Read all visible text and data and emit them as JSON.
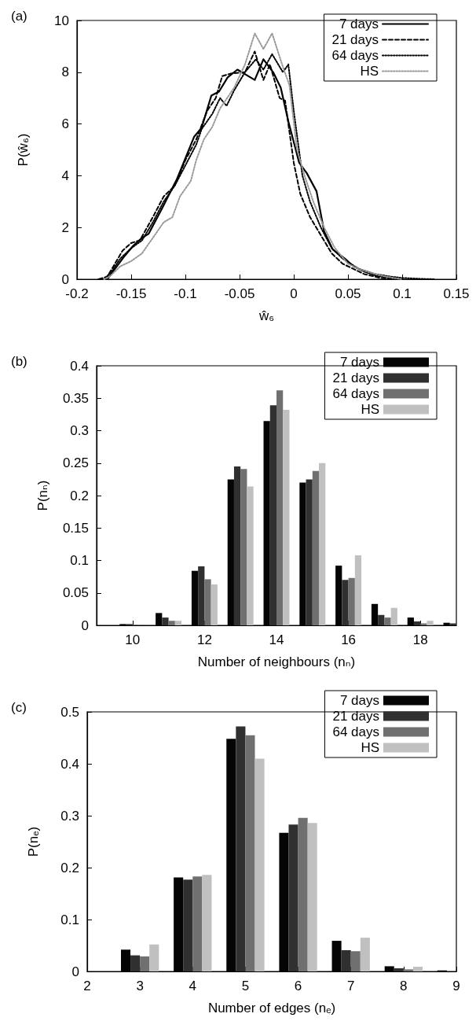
{
  "chart_data": [
    {
      "type": "line",
      "annotations": [
        "(a)"
      ],
      "xlabel": "ŵ₆",
      "ylabel": "P(ŵ₆)",
      "xlim": [
        -0.2,
        0.15
      ],
      "xticks": [
        -0.2,
        -0.15,
        -0.1,
        -0.05,
        0,
        0.05,
        0.1,
        0.15
      ],
      "ylim": [
        0,
        10
      ],
      "yticks": [
        0,
        2,
        4,
        6,
        8,
        10
      ],
      "grid": false,
      "legend": "top right",
      "marker": "none",
      "series": [
        {
          "name": "7 days",
          "color": "#000000",
          "line_style": "solid",
          "x": [
            -0.18,
            -0.172,
            -0.165,
            -0.157,
            -0.148,
            -0.14,
            -0.134,
            -0.122,
            -0.108,
            -0.092,
            -0.085,
            -0.076,
            -0.069,
            -0.061,
            -0.052,
            -0.036,
            -0.028,
            -0.019,
            -0.012,
            -0.005,
            0.005,
            0.012,
            0.021,
            0.028,
            0.036,
            0.047,
            0.055,
            0.065,
            0.075,
            0.09,
            0.1
          ],
          "values": [
            0,
            0,
            0.4,
            0.85,
            1.3,
            1.6,
            1.75,
            2.7,
            3.85,
            5.5,
            5.85,
            7.1,
            7.25,
            7.8,
            8.1,
            7.7,
            8.5,
            8.0,
            7.4,
            6.1,
            4.5,
            4.1,
            3.4,
            1.85,
            1.15,
            0.8,
            0.5,
            0.3,
            0.15,
            0.05,
            0
          ]
        },
        {
          "name": "21 days",
          "color": "#000000",
          "line_style": "dashed",
          "x": [
            -0.18,
            -0.172,
            -0.165,
            -0.158,
            -0.15,
            -0.142,
            -0.13,
            -0.12,
            -0.11,
            -0.1,
            -0.09,
            -0.08,
            -0.072,
            -0.066,
            -0.058,
            -0.045,
            -0.036,
            -0.028,
            -0.022,
            -0.013,
            -0.008,
            0,
            0.006,
            0.015,
            0.025,
            0.035,
            0.045,
            0.055,
            0.065,
            0.08,
            0.09
          ],
          "values": [
            0,
            0.1,
            0.6,
            1.1,
            1.4,
            1.5,
            2.4,
            3.2,
            3.6,
            4.6,
            5.4,
            6.5,
            7.0,
            7.85,
            7.95,
            8.0,
            8.8,
            7.7,
            8.3,
            7.0,
            6.9,
            4.5,
            3.3,
            2.4,
            1.7,
            1.0,
            0.6,
            0.4,
            0.2,
            0.05,
            0
          ]
        },
        {
          "name": "64 days",
          "color": "#000000",
          "line_style": "dotted",
          "x": [
            -0.175,
            -0.168,
            -0.16,
            -0.15,
            -0.14,
            -0.13,
            -0.12,
            -0.11,
            -0.1,
            -0.09,
            -0.085,
            -0.075,
            -0.068,
            -0.062,
            -0.055,
            -0.045,
            -0.035,
            -0.028,
            -0.02,
            -0.01,
            -0.005,
            0,
            0.008,
            0.015,
            0.025,
            0.035,
            0.045,
            0.06,
            0.075,
            0.09,
            0.1,
            0.115,
            0.13
          ],
          "values": [
            0,
            0.3,
            0.8,
            1.2,
            1.5,
            2.2,
            3.0,
            3.6,
            4.4,
            5.2,
            5.8,
            6.4,
            7.0,
            6.7,
            7.3,
            8.0,
            8.5,
            8.1,
            8.7,
            8.0,
            8.3,
            6.5,
            4.0,
            3.0,
            2.0,
            1.2,
            0.8,
            0.4,
            0.2,
            0.1,
            0.05,
            0.02,
            0
          ]
        },
        {
          "name": "HS",
          "color": "#999999",
          "line_style": "dotted",
          "x": [
            -0.175,
            -0.17,
            -0.16,
            -0.15,
            -0.14,
            -0.13,
            -0.12,
            -0.112,
            -0.105,
            -0.095,
            -0.09,
            -0.083,
            -0.075,
            -0.068,
            -0.055,
            -0.045,
            -0.036,
            -0.028,
            -0.02,
            -0.01,
            -0.004,
            0.003,
            0.01,
            0.018,
            0.028,
            0.038,
            0.05,
            0.06,
            0.075,
            0.085,
            0.1
          ],
          "values": [
            0,
            0.1,
            0.5,
            0.7,
            1.0,
            1.6,
            2.2,
            2.4,
            3.2,
            3.8,
            4.6,
            5.4,
            5.9,
            6.6,
            7.4,
            8.3,
            9.5,
            8.9,
            9.5,
            8.2,
            7.5,
            5.0,
            4.0,
            3.0,
            2.0,
            1.2,
            0.6,
            0.4,
            0.2,
            0.1,
            0
          ]
        }
      ]
    },
    {
      "type": "bar",
      "annotations": [
        "(b)"
      ],
      "xlabel": "Number of neighbours (nₙ)",
      "ylabel": "P(nₙ)",
      "x": [
        10,
        11,
        12,
        13,
        14,
        15,
        16,
        17,
        18,
        19
      ],
      "xlim": [
        9,
        19
      ],
      "xticks": [
        10,
        12,
        14,
        16,
        18
      ],
      "ylim": [
        0,
        0.4
      ],
      "yticks": [
        0,
        0.05,
        0.1,
        0.15,
        0.2,
        0.25,
        0.3,
        0.35,
        0.4
      ],
      "grid": false,
      "legend": "top right",
      "series": [
        {
          "name": "7 days",
          "color": "#050505",
          "values": [
            0.002,
            0.019,
            0.084,
            0.225,
            0.315,
            0.22,
            0.092,
            0.033,
            0.012,
            0.004
          ]
        },
        {
          "name": "21 days",
          "color": "#303030",
          "values": [
            0.002,
            0.012,
            0.091,
            0.245,
            0.339,
            0.225,
            0.07,
            0.016,
            0.006,
            0.003
          ]
        },
        {
          "name": "64 days",
          "color": "#707070",
          "values": [
            0.001,
            0.007,
            0.071,
            0.241,
            0.362,
            0.238,
            0.073,
            0.012,
            0.003,
            null
          ]
        },
        {
          "name": "HS",
          "color": "#c0c0c0",
          "values": [
            0,
            0.007,
            0.063,
            0.214,
            0.332,
            0.25,
            0.108,
            0.027,
            0.007,
            null
          ]
        }
      ]
    },
    {
      "type": "bar",
      "annotations": [
        "(c)"
      ],
      "xlabel": "Number of edges (nₑ)",
      "ylabel": "P(nₑ)",
      "x": [
        3,
        4,
        5,
        6,
        7,
        8,
        9
      ],
      "xlim": [
        2,
        9
      ],
      "xticks": [
        2,
        3,
        4,
        5,
        6,
        7,
        8,
        9
      ],
      "ylim": [
        0,
        0.5
      ],
      "yticks": [
        0,
        0.1,
        0.2,
        0.3,
        0.4,
        0.5
      ],
      "grid": false,
      "legend": "top right",
      "series": [
        {
          "name": "7 days",
          "color": "#050505",
          "values": [
            0.042,
            0.181,
            0.448,
            0.267,
            0.059,
            0.01,
            0.002
          ]
        },
        {
          "name": "21 days",
          "color": "#303030",
          "values": [
            0.031,
            0.177,
            0.472,
            0.283,
            0.041,
            0.006,
            0
          ]
        },
        {
          "name": "64 days",
          "color": "#707070",
          "values": [
            0.029,
            0.183,
            0.455,
            0.296,
            0.039,
            0.004,
            null
          ]
        },
        {
          "name": "HS",
          "color": "#c0c0c0",
          "values": [
            0.052,
            0.186,
            0.41,
            0.286,
            0.065,
            0.009,
            null
          ]
        }
      ]
    }
  ]
}
